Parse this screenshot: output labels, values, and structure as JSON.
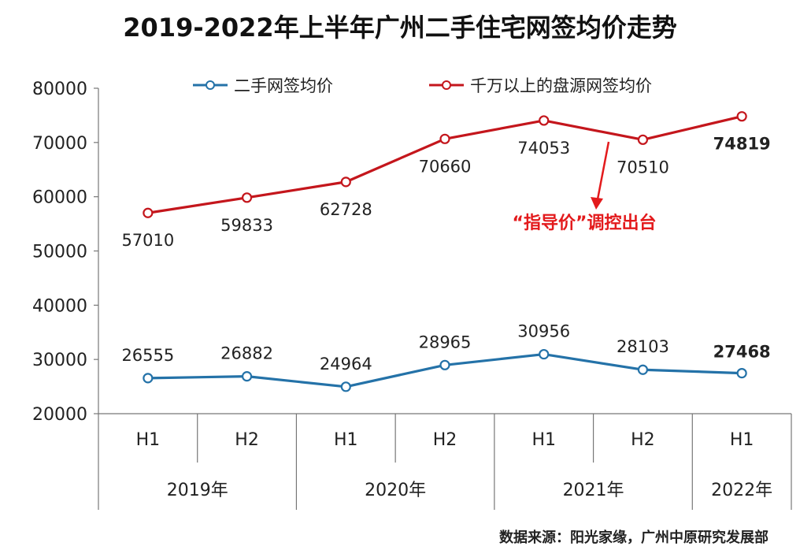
{
  "chart_data": {
    "type": "line",
    "title": "2019-2022年上半年广州二手住宅网签均价走势",
    "ylim": [
      20000,
      80000
    ],
    "y_ticks": [
      "80000",
      "70000",
      "60000",
      "50000",
      "40000",
      "30000",
      "20000"
    ],
    "categories": [
      "H1",
      "H2",
      "H1",
      "H2",
      "H1",
      "H2",
      "H1"
    ],
    "year_groups": [
      {
        "label": "2019年",
        "span": 2
      },
      {
        "label": "2020年",
        "span": 2
      },
      {
        "label": "2021年",
        "span": 2
      },
      {
        "label": "2022年",
        "span": 1
      }
    ],
    "series": [
      {
        "name": "二手网签均价",
        "color": "#2472a8",
        "values": [
          26555,
          26882,
          24964,
          28965,
          30956,
          28103,
          27468
        ]
      },
      {
        "name": "千万以上的盘源网签均价",
        "color": "#c4161c",
        "values": [
          57010,
          59833,
          62728,
          70660,
          74053,
          70510,
          74819
        ]
      }
    ],
    "legend_position": "top",
    "grid": false,
    "annotation": {
      "text": "“指导价”调控出台",
      "color": "#e31a1c"
    }
  },
  "source": "数据来源：阳光家缘，广州中原研究发展部"
}
